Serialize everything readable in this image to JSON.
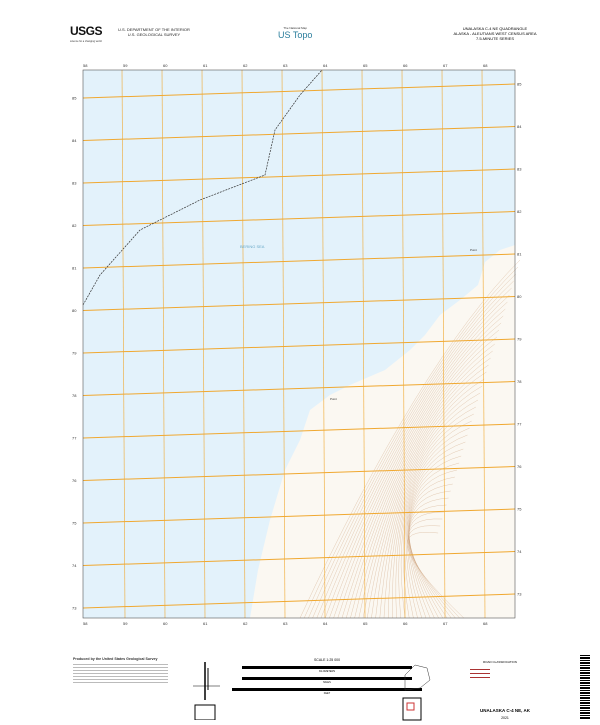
{
  "header": {
    "agency_logo": "USGS",
    "agency_tagline": "science for a changing world",
    "department": "U.S. DEPARTMENT OF THE INTERIOR",
    "survey": "U.S. GEOLOGICAL SURVEY",
    "product_tag": "The National Map",
    "product": "US Topo",
    "quadrangle": "UNALASKA C-4 NE QUADRANGLE",
    "region": "ALASKA - ALEUTIANS WEST CENSUS AREA",
    "series": "7.5-MINUTE SERIES"
  },
  "grid": {
    "easting_labels": [
      "58",
      "59",
      "60",
      "61",
      "62",
      "63",
      "64",
      "65",
      "66",
      "67",
      "68"
    ],
    "northing_labels": [
      "85",
      "84",
      "83",
      "82",
      "81",
      "80",
      "79",
      "78",
      "77",
      "76",
      "75",
      "74",
      "73"
    ]
  },
  "map": {
    "water_label": "BERING SEA",
    "place_labels": [
      "Point",
      "Point"
    ],
    "colors": {
      "water": "#e3f2fb",
      "land": "#fbf8f2",
      "contour": "#c89a70",
      "grid": "#f0a830",
      "boundary": "#333333"
    }
  },
  "footer": {
    "credits_title": "Produced by the United States Geological Survey",
    "scale_title": "SCALE 1:25 000",
    "scale_units": [
      "KILOMETERS",
      "METERS",
      "MILES",
      "FEET"
    ],
    "legend_title": "ROAD CLASSIFICATION",
    "map_name": "UNALASKA C-4 NE, AK",
    "year": "2021"
  }
}
